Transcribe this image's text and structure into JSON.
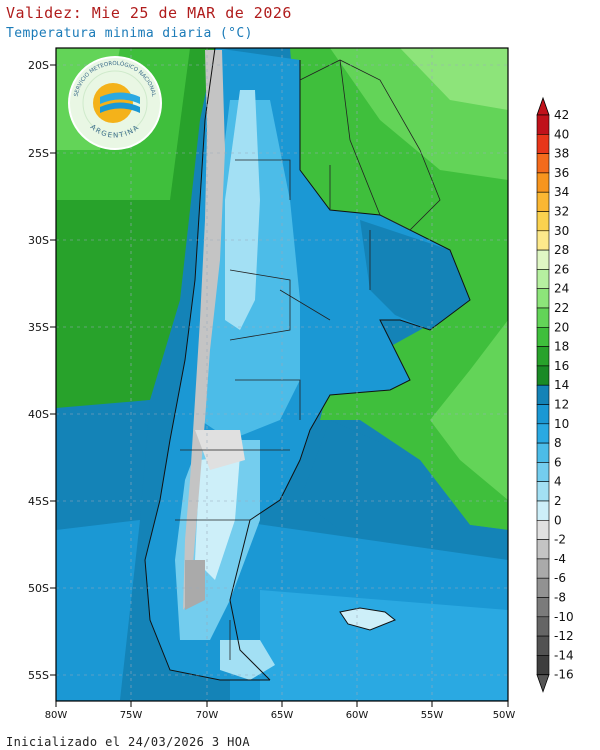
{
  "header": {
    "title": "Validez: Mie 25 de MAR de 2026",
    "subtitle": "Temperatura minima diaria (°C)"
  },
  "footer": {
    "init_text": "Inicializado el 24/03/2026 3 HOA"
  },
  "logo": {
    "text_top": "SERVICIO METEOROLÓGICO NACIONAL",
    "text_bottom": "ARGENTINA"
  },
  "map": {
    "lat_labels": [
      "20S",
      "25S",
      "30S",
      "35S",
      "40S",
      "45S",
      "50S",
      "55S"
    ],
    "lon_labels": [
      "80W",
      "75W",
      "70W",
      "65W",
      "60W",
      "55W",
      "50W"
    ]
  },
  "colorbar": {
    "labels": [
      "42",
      "40",
      "38",
      "36",
      "34",
      "32",
      "30",
      "28",
      "26",
      "24",
      "22",
      "20",
      "18",
      "16",
      "14",
      "12",
      "10",
      "8",
      "6",
      "4",
      "2",
      "0",
      "-2",
      "-4",
      "-6",
      "-8",
      "-10",
      "-12",
      "-14",
      "-16"
    ],
    "colors": [
      "#c0121b",
      "#e8361a",
      "#f46b1c",
      "#f7951e",
      "#fab733",
      "#fbd24f",
      "#fde98b",
      "#dff7c4",
      "#b6f0a0",
      "#8de47a",
      "#63d458",
      "#3fbf3c",
      "#28a22b",
      "#1a8a26",
      "#1483b7",
      "#1b98d4",
      "#2aa9e2",
      "#4cbce8",
      "#74cdee",
      "#a3e0f4",
      "#cdeff9",
      "#e0e0e0",
      "#c4c4c4",
      "#aaaaaa",
      "#929292",
      "#7b7b7b",
      "#656565",
      "#525252",
      "#3e3e3e"
    ]
  }
}
